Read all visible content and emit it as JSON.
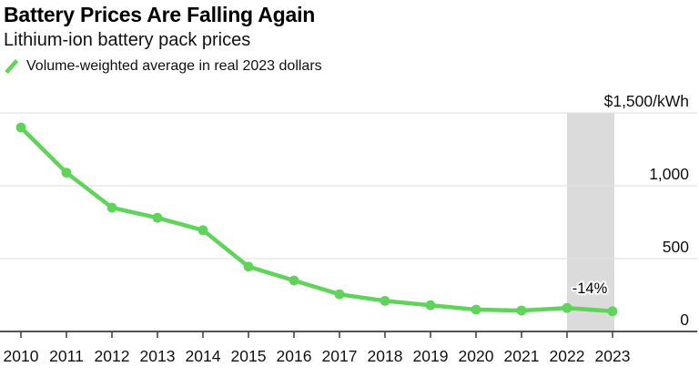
{
  "header": {
    "title": "Battery Prices Are Falling Again",
    "subtitle": "Lithium-ion battery pack prices",
    "legend": {
      "label": "Volume-weighted average in real 2023 dollars",
      "marker": "green-slash-icon",
      "marker_color": "#5fd35a"
    }
  },
  "chart_data": {
    "type": "line",
    "title": "Battery Prices Are Falling Again",
    "subtitle": "Lithium-ion battery pack prices",
    "x": [
      2010,
      2011,
      2012,
      2013,
      2014,
      2015,
      2016,
      2017,
      2018,
      2019,
      2020,
      2021,
      2022,
      2023
    ],
    "series": [
      {
        "name": "Volume-weighted average in real 2023 dollars",
        "values": [
          1400,
          1090,
          850,
          780,
          695,
          445,
          350,
          255,
          210,
          180,
          150,
          144,
          161,
          139
        ],
        "color": "#5fd35a"
      }
    ],
    "ylabel": "$/kWh",
    "ylim": [
      0,
      1500
    ],
    "yticks": [
      {
        "value": 1500,
        "label": "$1,500/kWh"
      },
      {
        "value": 1000,
        "label": "1,000"
      },
      {
        "value": 500,
        "label": "500"
      },
      {
        "value": 0,
        "label": "0"
      }
    ],
    "grid": "horizontal",
    "legend_position": "top-left",
    "annotation": {
      "label": "-14%",
      "from_year": 2022,
      "to_year": 2023,
      "band_color": "#dbdbdb"
    },
    "colors": {
      "line": "#5fd35a",
      "grid": "#e3e3e3",
      "axis": "#3c3c3c",
      "text": "#111111",
      "annotation_text": "#000000",
      "annotation_halo": "#ffffff"
    }
  }
}
